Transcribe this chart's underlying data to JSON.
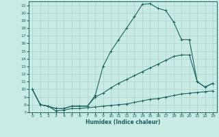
{
  "title": "",
  "xlabel": "Humidex (Indice chaleur)",
  "xlim": [
    -0.5,
    23.5
  ],
  "ylim": [
    7,
    21.5
  ],
  "yticks": [
    7,
    8,
    9,
    10,
    11,
    12,
    13,
    14,
    15,
    16,
    17,
    18,
    19,
    20,
    21
  ],
  "xticks": [
    0,
    1,
    2,
    3,
    4,
    5,
    6,
    7,
    8,
    9,
    10,
    11,
    12,
    13,
    14,
    15,
    16,
    17,
    18,
    19,
    20,
    21,
    22,
    23
  ],
  "background_color": "#c8ebe3",
  "grid_color": "#aad4cc",
  "line_color": "#1a6060",
  "curve1_x": [
    0,
    1,
    2,
    3,
    4,
    5,
    6,
    7,
    8,
    9,
    10,
    11,
    12,
    13,
    14,
    15,
    16,
    17,
    18,
    19,
    20,
    21,
    22,
    23
  ],
  "curve1_y": [
    10.0,
    8.0,
    7.8,
    7.5,
    7.5,
    7.8,
    7.8,
    7.8,
    9.2,
    13.0,
    15.0,
    16.5,
    18.0,
    19.5,
    21.1,
    21.2,
    20.6,
    20.3,
    18.8,
    16.5,
    16.5,
    11.0,
    10.3,
    10.8
  ],
  "curve2_x": [
    0,
    1,
    2,
    3,
    4,
    5,
    6,
    7,
    8,
    9,
    10,
    11,
    12,
    13,
    14,
    15,
    16,
    17,
    18,
    19,
    20,
    21,
    22,
    23
  ],
  "curve2_y": [
    10.0,
    8.0,
    7.8,
    7.5,
    7.5,
    7.8,
    7.8,
    7.8,
    9.0,
    9.5,
    10.2,
    10.8,
    11.3,
    11.8,
    12.3,
    12.8,
    13.3,
    13.8,
    14.3,
    14.5,
    14.5,
    11.0,
    10.3,
    10.8
  ],
  "curve3_x": [
    0,
    1,
    2,
    3,
    4,
    5,
    6,
    7,
    8,
    9,
    10,
    11,
    12,
    13,
    14,
    15,
    16,
    17,
    18,
    19,
    20,
    21,
    22,
    23
  ],
  "curve3_y": [
    10.0,
    8.0,
    7.8,
    7.2,
    7.3,
    7.5,
    7.5,
    7.6,
    7.7,
    7.8,
    7.9,
    8.0,
    8.1,
    8.3,
    8.5,
    8.7,
    8.8,
    9.0,
    9.2,
    9.4,
    9.5,
    9.6,
    9.7,
    9.8
  ]
}
